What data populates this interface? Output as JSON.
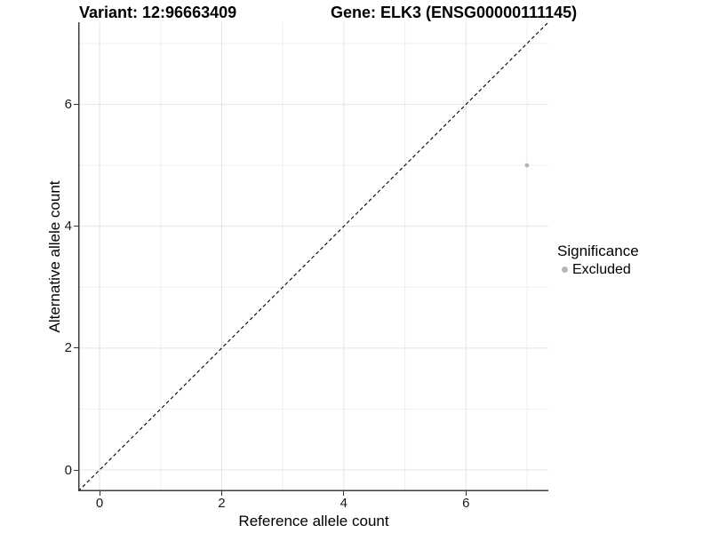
{
  "header": {
    "variant_title": "Variant: 12:96663409",
    "gene_title": "Gene: ELK3 (ENSG00000111145)"
  },
  "legend": {
    "title": "Significance",
    "items": [
      {
        "label": "Excluded",
        "color": "#b5b5b5",
        "marker": "dot-icon"
      }
    ]
  },
  "chart_data": {
    "type": "scatter",
    "titles": [
      "Variant: 12:96663409",
      "Gene: ELK3 (ENSG00000111145)"
    ],
    "xlabel": "Reference allele count",
    "ylabel": "Alternative allele count",
    "xlim": [
      -0.35,
      7.35
    ],
    "ylim": [
      -0.35,
      7.35
    ],
    "x_ticks": [
      0,
      2,
      4,
      6
    ],
    "y_ticks": [
      0,
      2,
      4,
      6
    ],
    "x_minor_gridlines": [
      1,
      3,
      5,
      7
    ],
    "y_minor_gridlines": [
      1,
      3,
      5,
      7
    ],
    "grid": "major_and_minor",
    "legend_position": "right",
    "legend_title": "Significance",
    "series": [
      {
        "name": "Excluded",
        "color": "#b5b5b5",
        "points": [
          {
            "x": 7,
            "y": 5
          }
        ]
      }
    ],
    "reference_line": {
      "kind": "identity_y_equals_x",
      "from": [
        -0.35,
        -0.35
      ],
      "to": [
        7.35,
        7.35
      ],
      "style": "dashed",
      "color": "#000000"
    }
  },
  "style": {
    "background": "#ffffff",
    "major_grid_color": "#e4e4e4",
    "minor_grid_color": "#efefef",
    "axis_line_color": "#3c3c3c",
    "tick_mark_color": "#333333",
    "text_color": "#000000",
    "point_color": "#b5b5b5"
  }
}
